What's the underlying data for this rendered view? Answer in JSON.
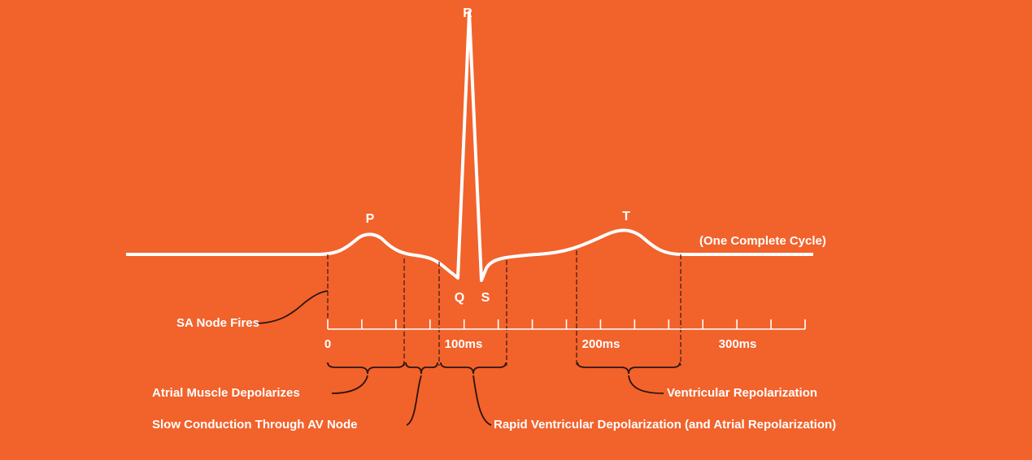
{
  "waves": {
    "p": "P",
    "q": "Q",
    "r": "R",
    "s": "S",
    "t": "T"
  },
  "cycle_label": "(One Complete Cycle)",
  "time_axis": {
    "labels": [
      "0",
      "100ms",
      "200ms",
      "300ms"
    ]
  },
  "annotations": {
    "sa_node": "SA Node Fires",
    "atrial_depolarization": "Atrial Muscle Depolarizes",
    "av_conduction": "Slow Conduction Through AV Node",
    "ventricular_depolarization": "Rapid Ventricular Depolarization (and Atrial Repolarization)",
    "ventricular_repolarization": "Ventricular Repolarization"
  }
}
